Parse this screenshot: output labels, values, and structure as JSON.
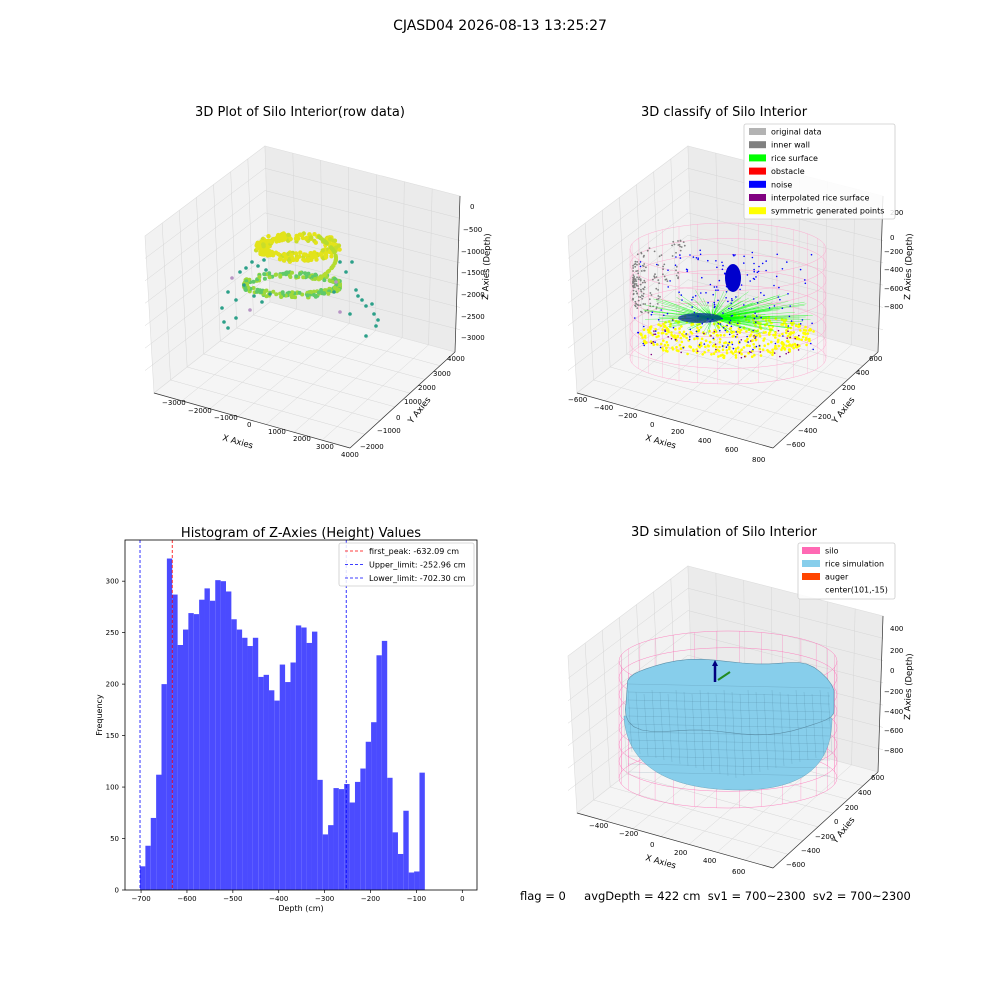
{
  "figure": {
    "suptitle": "CJASD04 2026-08-13 13:25:27",
    "footer_flag": "flag = 0",
    "footer_stats": "avgDepth = 422 cm  sv1 = 700~2300  sv2 = 700~2300"
  },
  "colors": {
    "hist_bar": "#4b4bff",
    "first_peak": "#ff0000",
    "limits": "#0000ff",
    "silo": "#ff69b4",
    "rice": "#87ceeb",
    "auger": "#ff4500",
    "raw_low": "#2ca089",
    "raw_high": "#e3e31a"
  },
  "chart_data": [
    {
      "type": "scatter",
      "title": "3D Plot of Silo Interior(row data)",
      "xlabel": "X Axies",
      "ylabel": "Y Axies",
      "zlabel": "Z Axies (Depth)",
      "x_ticks": [
        "−3000",
        "−2000",
        "−1000",
        "0",
        "1000",
        "2000",
        "3000",
        "4000"
      ],
      "y_ticks": [
        "−2000",
        "−1000",
        "0",
        "1000",
        "2000",
        "3000",
        "4000"
      ],
      "z_ticks": [
        "0",
        "−500",
        "−1000",
        "−1500",
        "−2000",
        "−2500",
        "−3000"
      ],
      "xlim": [
        -3000,
        4000
      ],
      "ylim": [
        -2000,
        4000
      ],
      "zlim": [
        -3000,
        0
      ],
      "grid": true
    },
    {
      "type": "scatter",
      "title": "3D classify of Silo Interior",
      "xlabel": "X Axies",
      "ylabel": "Y Axies",
      "zlabel": "Z Axies (Depth)",
      "x_ticks": [
        "−600",
        "−400",
        "−200",
        "0",
        "200",
        "400",
        "600",
        "800"
      ],
      "y_ticks": [
        "−600",
        "−400",
        "−200",
        "0",
        "200",
        "400",
        "600"
      ],
      "z_ticks": [
        "200",
        "0",
        "−200",
        "−400",
        "−600",
        "−800"
      ],
      "legend": [
        {
          "name": "original data",
          "color": "#b3b3b3"
        },
        {
          "name": "inner wall",
          "color": "#808080"
        },
        {
          "name": "rice surface",
          "color": "#00ff00"
        },
        {
          "name": "obstacle",
          "color": "#ff0000"
        },
        {
          "name": "noise",
          "color": "#0000ff"
        },
        {
          "name": "interpolated rice surface",
          "color": "#800080"
        },
        {
          "name": "symmetric generated points",
          "color": "#ffff00"
        }
      ],
      "legend_loc": "upper right",
      "grid": true
    },
    {
      "type": "bar",
      "title": "Histogram of Z-Axies (Height) Values",
      "xlabel": "Depth (cm)",
      "ylabel": "Frequency",
      "xlim": [
        -735,
        32
      ],
      "ylim": [
        0,
        340
      ],
      "x_ticks": [
        -700,
        -600,
        -500,
        -400,
        -300,
        -200,
        -100,
        0
      ],
      "y_ticks": [
        0,
        50,
        100,
        150,
        200,
        250,
        300
      ],
      "bin_start": -702.3,
      "bin_width": 11.71,
      "values": [
        23,
        43,
        70,
        112,
        200,
        322,
        287,
        238,
        253,
        269,
        268,
        282,
        293,
        281,
        301,
        300,
        290,
        263,
        253,
        245,
        237,
        245,
        207,
        209,
        194,
        184,
        219,
        202,
        221,
        257,
        255,
        240,
        251,
        107,
        54,
        63,
        99,
        98,
        103,
        85,
        105,
        118,
        144,
        163,
        228,
        242,
        109,
        56,
        35,
        77,
        17,
        18,
        114
      ],
      "lines": [
        {
          "name": "first_peak: -632.09 cm",
          "value": -632.09,
          "style": "dashed",
          "color": "#ff0000"
        },
        {
          "name": "Upper_limit: -252.96 cm",
          "value": -252.96,
          "style": "dashed",
          "color": "#0000ff"
        },
        {
          "name": "Lower_limit: -702.30 cm",
          "value": -702.3,
          "style": "dashed",
          "color": "#0000ff"
        }
      ],
      "legend_loc": "upper right"
    },
    {
      "type": "area",
      "title": "3D simulation of Silo Interior",
      "xlabel": "X Axies",
      "ylabel": "Y Axies",
      "zlabel": "Z Axies (Depth)",
      "x_ticks": [
        "−400",
        "−200",
        "0",
        "200",
        "400",
        "600"
      ],
      "y_ticks": [
        "−600",
        "−400",
        "−200",
        "0",
        "200",
        "400",
        "600"
      ],
      "z_ticks": [
        "400",
        "200",
        "0",
        "−200",
        "−400",
        "−600",
        "−800"
      ],
      "legend": [
        {
          "name": "silo",
          "color": "#ff69b4"
        },
        {
          "name": "rice simulation",
          "color": "#87ceeb"
        },
        {
          "name": "auger",
          "color": "#ff4500"
        },
        {
          "name": "center(101,-15)",
          "color": ""
        }
      ],
      "legend_loc": "upper right",
      "grid": true
    }
  ]
}
